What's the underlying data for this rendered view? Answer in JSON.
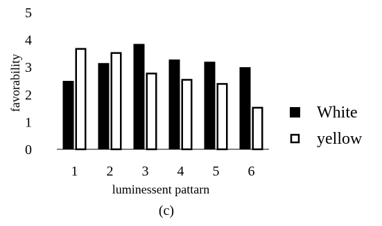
{
  "chart_data": {
    "type": "bar",
    "title": "",
    "xlabel": "luminessent pattarn",
    "ylabel": "favorability",
    "caption": "(c)",
    "categories": [
      "1",
      "2",
      "3",
      "4",
      "5",
      "6"
    ],
    "series": [
      {
        "name": "White",
        "values": [
          2.5,
          3.15,
          3.85,
          3.28,
          3.2,
          3.0
        ],
        "color": "#000000",
        "fill": "#000000"
      },
      {
        "name": "yellow",
        "values": [
          3.7,
          3.55,
          2.8,
          2.57,
          2.42,
          1.55
        ],
        "color": "#000000",
        "fill": "#ffffff"
      }
    ],
    "ylim": [
      0,
      5
    ],
    "yticks": [
      "0",
      "1",
      "2",
      "3",
      "4",
      "5"
    ],
    "grid": false,
    "legend_position": "right"
  }
}
